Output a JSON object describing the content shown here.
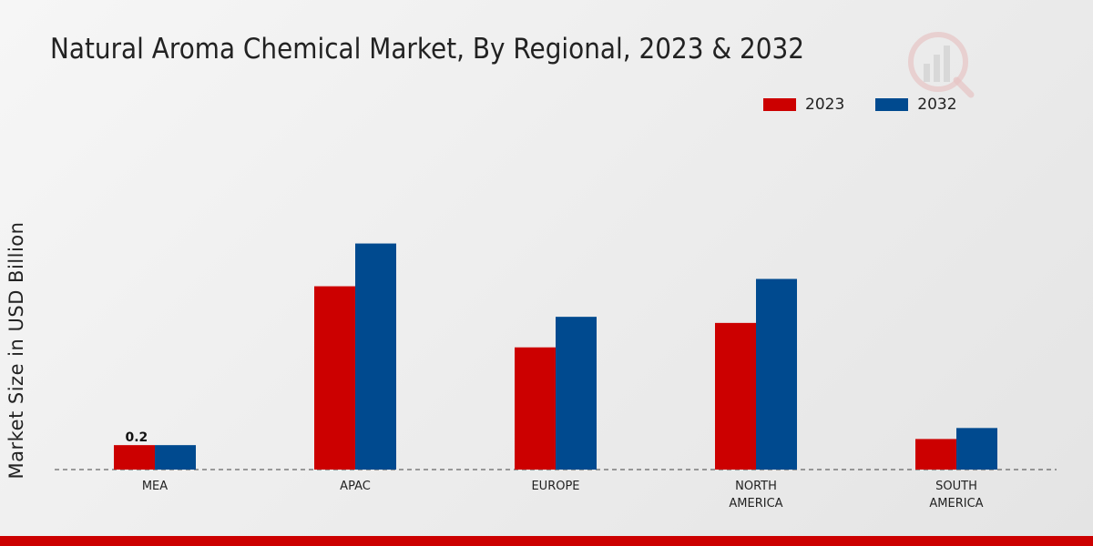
{
  "chart_data": {
    "type": "bar",
    "title": "Natural Aroma Chemical Market, By Regional, 2023 & 2032",
    "xlabel": "",
    "ylabel": "Market Size in USD Billion",
    "categories": [
      [
        "MEA"
      ],
      [
        "APAC"
      ],
      [
        "EUROPE"
      ],
      [
        "NORTH",
        "AMERICA"
      ],
      [
        "SOUTH",
        "AMERICA"
      ]
    ],
    "series": [
      {
        "name": "2023",
        "color": "#cc0000",
        "values": [
          0.2,
          1.5,
          1.0,
          1.2,
          0.25
        ]
      },
      {
        "name": "2032",
        "color": "#004a8f",
        "values": [
          0.2,
          1.85,
          1.25,
          1.56,
          0.34
        ]
      }
    ],
    "data_labels": [
      {
        "series": 0,
        "index": 0,
        "text": "0.2"
      }
    ],
    "ylim": [
      0,
      2.8
    ],
    "grid": false,
    "baseline": "dashed",
    "legend_position": "top-right"
  },
  "brand": {
    "accent": "#cc0000"
  }
}
